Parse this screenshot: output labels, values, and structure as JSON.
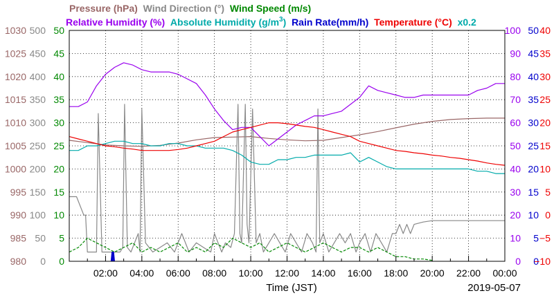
{
  "chart_data": {
    "type": "line",
    "xlabel": "Time (JST)",
    "date": "2019-05-07",
    "x_hours": [
      0,
      1,
      2,
      3,
      4,
      5,
      6,
      7,
      8,
      9,
      10,
      11,
      12,
      13,
      14,
      15,
      16,
      17,
      18,
      19,
      20,
      21,
      22,
      23,
      24
    ],
    "x_ticks": [
      {
        "h": 2,
        "label": "02:00"
      },
      {
        "h": 4,
        "label": "04:00"
      },
      {
        "h": 6,
        "label": "06:00"
      },
      {
        "h": 8,
        "label": "08:00"
      },
      {
        "h": 10,
        "label": "10:00"
      },
      {
        "h": 12,
        "label": "12:00"
      },
      {
        "h": 14,
        "label": "14:00"
      },
      {
        "h": 16,
        "label": "16:00"
      },
      {
        "h": 18,
        "label": "18:00"
      },
      {
        "h": 20,
        "label": "20:00"
      },
      {
        "h": 22,
        "label": "22:00"
      },
      {
        "h": 24,
        "label": "00:00"
      }
    ],
    "grid": true,
    "axes": [
      {
        "side": "left",
        "order": 0,
        "name": "Pressure (hPa)",
        "color": "#996666",
        "ylim": [
          980,
          1030
        ],
        "ticks": [
          "980",
          "985",
          "990",
          "995",
          "1000",
          "1005",
          "1010",
          "1015",
          "1020",
          "1025",
          "1030"
        ]
      },
      {
        "side": "left",
        "order": 1,
        "name": "Wind Direction (°)",
        "color": "#888888",
        "ylim": [
          0,
          500
        ],
        "ticks": [
          "0",
          "50",
          "100",
          "150",
          "200",
          "250",
          "300",
          "350",
          "400",
          "450",
          "500"
        ]
      },
      {
        "side": "left",
        "order": 2,
        "name": "Wind Speed (m/s)",
        "color": "#008800",
        "ylim": [
          0,
          50
        ],
        "ticks": [
          "0",
          "5",
          "10",
          "15",
          "20",
          "25",
          "30",
          "35",
          "40",
          "45",
          "50"
        ]
      },
      {
        "side": "right",
        "order": 0,
        "name": "Relative Humidity (%)",
        "color": "#9900ee",
        "ylim": [
          0,
          100
        ],
        "ticks": [
          "0",
          "10",
          "20",
          "30",
          "40",
          "50",
          "60",
          "70",
          "80",
          "90",
          "100"
        ]
      },
      {
        "side": "right",
        "order": 1,
        "name": "Rain Rate(mm/h)",
        "color": "#0000cc",
        "ylim": [
          0,
          50
        ],
        "ticks": [
          "0",
          "5",
          "10",
          "15",
          "20",
          "25",
          "30",
          "35",
          "40",
          "45",
          "50"
        ]
      },
      {
        "side": "right",
        "order": 2,
        "name": "Temperature (°C)",
        "color": "#ee0000",
        "ylim": [
          -10,
          40
        ],
        "ticks": [
          "−10",
          "−5",
          "0",
          "5",
          "10",
          "15",
          "20",
          "25",
          "30",
          "35",
          "40"
        ]
      }
    ],
    "legend_row1": [
      {
        "text": "Pressure (hPa)",
        "color": "#996666"
      },
      {
        "text": "Wind Direction (°)",
        "color": "#888888"
      },
      {
        "text": "Wind Speed (m/s)",
        "color": "#008800"
      }
    ],
    "legend_row2": [
      {
        "text": "Relative Humidity (%)",
        "color": "#9900ee"
      },
      {
        "text": "Absolute Humidity (g/m",
        "sup": "3",
        "close": ")",
        "color": "#00aaaa"
      },
      {
        "text": "Rain Rate(mm/h)",
        "color": "#0000cc"
      },
      {
        "text": "Temperature (°C)",
        "color": "#ee0000"
      },
      {
        "text": "x0.2",
        "color": "#00aaaa"
      }
    ],
    "series": [
      {
        "name": "Pressure (hPa)",
        "axis": "left0",
        "color": "#996666",
        "style": "solid",
        "x": [
          0,
          1,
          2,
          3,
          4,
          5,
          6,
          7,
          8,
          9,
          10,
          11,
          12,
          13,
          14,
          15,
          16,
          17,
          18,
          19,
          20,
          21,
          22,
          23,
          24
        ],
        "y": [
          1006.2,
          1005.7,
          1005.2,
          1005.0,
          1004.9,
          1005.1,
          1005.6,
          1006.3,
          1006.8,
          1006.9,
          1007.0,
          1006.6,
          1006.3,
          1006.1,
          1006.2,
          1006.8,
          1007.4,
          1008.1,
          1008.9,
          1009.7,
          1010.3,
          1010.7,
          1010.9,
          1011.0,
          1011.0
        ]
      },
      {
        "name": "Wind Direction (°)",
        "axis": "left1",
        "color": "#888888",
        "style": "solid",
        "x": [
          0,
          0.3,
          0.4,
          0.8,
          0.9,
          1.0,
          1.3,
          1.5,
          1.6,
          1.8,
          2.0,
          2.2,
          2.4,
          2.6,
          2.8,
          2.95,
          3.05,
          3.2,
          3.4,
          3.6,
          3.8,
          3.9,
          4.0,
          4.2,
          4.6,
          5.0,
          5.4,
          5.8,
          6.2,
          6.6,
          7.0,
          7.4,
          7.8,
          8.0,
          8.2,
          8.4,
          8.6,
          8.9,
          9.1,
          9.3,
          9.4,
          9.5,
          9.7,
          9.8,
          9.9,
          10.1,
          10.3,
          10.5,
          10.6,
          10.7,
          11.0,
          11.3,
          11.6,
          11.9,
          12.2,
          12.5,
          12.8,
          13.1,
          13.4,
          13.6,
          13.7,
          13.8,
          14.0,
          14.3,
          14.6,
          14.9,
          15.2,
          15.5,
          15.8,
          16.0,
          16.3,
          16.6,
          16.9,
          17.2,
          17.5,
          17.8,
          18.0,
          18.2,
          18.4,
          18.6,
          18.8,
          19.0,
          19.5,
          20.0,
          21.0,
          22.0,
          23.0,
          24.0
        ],
        "y": [
          140,
          140,
          140,
          100,
          100,
          20,
          20,
          20,
          320,
          20,
          20,
          20,
          20,
          20,
          20,
          30,
          340,
          30,
          20,
          40,
          60,
          20,
          330,
          40,
          20,
          30,
          40,
          20,
          60,
          20,
          40,
          30,
          20,
          60,
          40,
          20,
          40,
          30,
          60,
          340,
          60,
          40,
          340,
          80,
          40,
          330,
          40,
          60,
          40,
          20,
          40,
          60,
          40,
          20,
          60,
          40,
          20,
          60,
          40,
          20,
          330,
          40,
          60,
          20,
          40,
          60,
          40,
          60,
          20,
          40,
          60,
          20,
          60,
          40,
          20,
          60,
          60,
          80,
          60,
          80,
          60,
          80,
          85,
          88,
          88,
          88,
          88,
          88
        ]
      },
      {
        "name": "Wind Speed (m/s)",
        "axis": "left2",
        "color": "#008800",
        "style": "dashed",
        "x": [
          0,
          0.5,
          1,
          1.5,
          2,
          2.5,
          3,
          3.5,
          4,
          4.5,
          5,
          5.5,
          6,
          6.5,
          7,
          7.5,
          8,
          8.5,
          9,
          9.5,
          10,
          10.5,
          11,
          11.5,
          12,
          12.5,
          13,
          13.5,
          14,
          14.5,
          15,
          15.5,
          16,
          16.5,
          17,
          17.5,
          18,
          18.5,
          19,
          19.5,
          20
        ],
        "y": [
          2,
          3,
          5,
          4,
          3,
          2,
          3,
          4,
          2,
          3,
          2,
          3,
          4,
          2,
          3,
          2,
          4,
          3,
          5,
          4,
          3,
          4,
          2,
          3,
          4,
          3,
          2,
          3,
          4,
          3,
          2,
          3,
          3,
          2,
          3,
          2,
          1,
          1,
          0.5,
          0.5,
          0.2
        ]
      },
      {
        "name": "Relative Humidity (%)",
        "axis": "right0",
        "color": "#9900ee",
        "style": "solid",
        "x": [
          0,
          0.5,
          1,
          1.5,
          2,
          2.5,
          3,
          3.5,
          4,
          4.5,
          5,
          5.5,
          6,
          6.5,
          7,
          7.5,
          8,
          8.5,
          9,
          9.5,
          10,
          10.5,
          11,
          11.5,
          12,
          12.5,
          13,
          13.5,
          14,
          14.5,
          15,
          15.5,
          16,
          16.5,
          17,
          17.5,
          18,
          18.5,
          19,
          19.5,
          20,
          20.5,
          21,
          21.5,
          22,
          22.5,
          23,
          23.5,
          24
        ],
        "y": [
          67,
          67,
          69,
          76,
          81,
          84,
          86,
          85,
          83,
          82,
          82,
          82,
          81,
          79,
          77,
          72,
          66,
          61,
          57,
          58,
          58,
          54,
          50,
          53,
          56,
          59,
          61,
          63,
          63,
          64,
          65,
          68,
          71,
          76,
          74,
          73,
          72,
          71,
          71,
          72,
          72,
          72,
          72,
          72,
          72,
          74,
          75,
          77,
          77
        ]
      },
      {
        "name": "Absolute Humidity (g/m3) x0.2",
        "axis": "left2",
        "color": "#00aaaa",
        "style": "solid",
        "x": [
          0,
          0.5,
          1,
          1.5,
          2,
          2.5,
          3,
          3.5,
          4,
          4.5,
          5,
          5.5,
          6,
          6.5,
          7,
          7.5,
          8,
          8.5,
          9,
          9.5,
          10,
          10.5,
          11,
          11.5,
          12,
          12.5,
          13,
          13.5,
          14,
          14.5,
          15,
          15.5,
          16,
          16.5,
          17,
          17.5,
          18,
          18.5,
          19,
          19.5,
          20,
          20.5,
          21,
          21.5,
          22,
          22.5,
          23,
          23.5,
          24
        ],
        "y": [
          24,
          24,
          25,
          25,
          25.5,
          26,
          26,
          25.5,
          25.5,
          25,
          25,
          25.5,
          25.5,
          25,
          25,
          24.5,
          24.5,
          24.5,
          24,
          23,
          21.5,
          21,
          21,
          22,
          22,
          22.5,
          22.5,
          23,
          23,
          23,
          23,
          23.5,
          21.5,
          22.5,
          21.5,
          20.5,
          20,
          20,
          20,
          20,
          20,
          20,
          20,
          20,
          20,
          19.5,
          19.5,
          19,
          19
        ]
      },
      {
        "name": "Rain Rate(mm/h)",
        "axis": "right1",
        "color": "#0000cc",
        "style": "solid",
        "x": [
          0,
          2.3,
          2.35,
          2.45,
          2.5,
          24
        ],
        "y": [
          0,
          0,
          2,
          2,
          0,
          0
        ]
      },
      {
        "name": "Temperature (°C)",
        "axis": "right2",
        "color": "#ee0000",
        "style": "solid",
        "x": [
          0,
          0.5,
          1,
          1.5,
          2,
          2.5,
          3,
          3.5,
          4,
          4.5,
          5,
          5.5,
          6,
          6.5,
          7,
          7.5,
          8,
          8.5,
          9,
          9.5,
          10,
          10.5,
          11,
          11.5,
          12,
          12.5,
          13,
          13.5,
          14,
          14.5,
          15,
          15.5,
          16,
          16.5,
          17,
          17.5,
          18,
          18.5,
          19,
          19.5,
          20,
          20.5,
          21,
          21.5,
          22,
          22.5,
          23,
          23.5,
          24
        ],
        "y": [
          17,
          16.5,
          16,
          15.5,
          15,
          14.8,
          14.5,
          14.3,
          14,
          14,
          14,
          14,
          14.2,
          14.5,
          15,
          15.5,
          16,
          17,
          18,
          18.5,
          19,
          19.5,
          20,
          20,
          19.8,
          19.5,
          19.2,
          19,
          18.5,
          18,
          17.5,
          17,
          16,
          15.5,
          15,
          14.5,
          14,
          13.8,
          13.5,
          13.3,
          13,
          12.8,
          12.5,
          12.3,
          12,
          11.7,
          11.3,
          11,
          10.8
        ]
      }
    ]
  }
}
